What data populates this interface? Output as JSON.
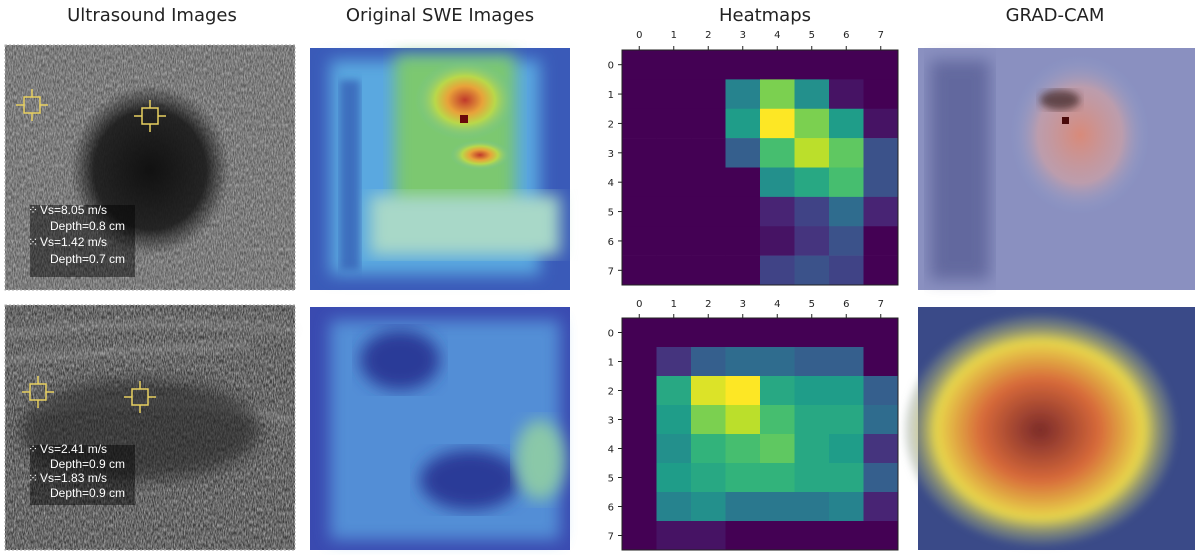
{
  "columns": [
    "Ultrasound Images",
    "Original SWE Images",
    "Heatmaps",
    "GRAD-CAM"
  ],
  "heatmap_ticks": [
    0,
    1,
    2,
    3,
    4,
    5,
    6,
    7
  ],
  "rows": [
    {
      "measurements": [
        "Vs=8.05 m/s",
        "Depth=0.8 cm",
        "Vs=1.42 m/s",
        "Depth=0.7 cm"
      ],
      "heatmap": [
        [
          0,
          0,
          0,
          0,
          0,
          0,
          0,
          0
        ],
        [
          0,
          0,
          0,
          0.45,
          0.8,
          0.5,
          0.05,
          0
        ],
        [
          0,
          0,
          0,
          0.55,
          1.0,
          0.8,
          0.55,
          0.05
        ],
        [
          0,
          0,
          0,
          0.3,
          0.7,
          0.9,
          0.75,
          0.25
        ],
        [
          0,
          0,
          0,
          0,
          0.5,
          0.6,
          0.7,
          0.25
        ],
        [
          0,
          0,
          0,
          0,
          0.1,
          0.2,
          0.35,
          0.1
        ],
        [
          0,
          0,
          0,
          0,
          0.05,
          0.15,
          0.25,
          0
        ],
        [
          0,
          0,
          0,
          0,
          0.2,
          0.25,
          0.2,
          0
        ]
      ]
    },
    {
      "measurements": [
        "Vs=2.41 m/s",
        "Depth=0.9 cm",
        "Vs=1.83 m/s",
        "Depth=0.9 cm"
      ],
      "heatmap": [
        [
          0,
          0,
          0,
          0,
          0,
          0,
          0,
          0
        ],
        [
          0,
          0.15,
          0.3,
          0.35,
          0.35,
          0.3,
          0.3,
          0
        ],
        [
          0,
          0.6,
          0.95,
          1.0,
          0.6,
          0.55,
          0.55,
          0.3
        ],
        [
          0,
          0.55,
          0.8,
          0.9,
          0.7,
          0.6,
          0.6,
          0.35
        ],
        [
          0,
          0.5,
          0.65,
          0.7,
          0.75,
          0.6,
          0.55,
          0.15
        ],
        [
          0,
          0.55,
          0.6,
          0.65,
          0.65,
          0.6,
          0.6,
          0.3
        ],
        [
          0,
          0.45,
          0.5,
          0.4,
          0.4,
          0.4,
          0.45,
          0.1
        ],
        [
          0,
          0.05,
          0.05,
          0,
          0,
          0,
          0,
          0
        ]
      ]
    }
  ]
}
